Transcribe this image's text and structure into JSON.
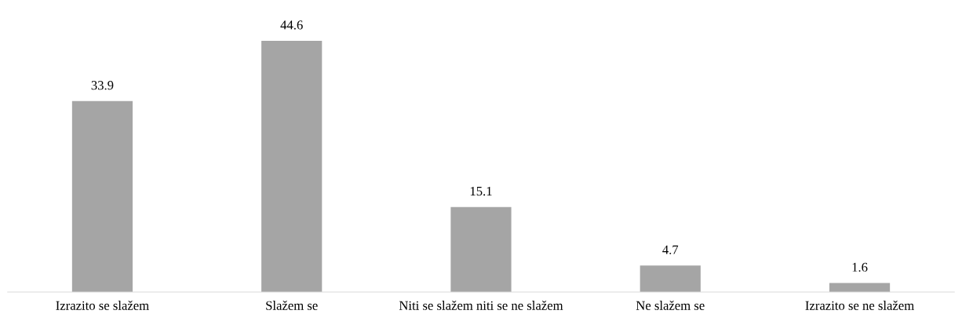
{
  "chart_data": {
    "type": "bar",
    "categories": [
      "Izrazito se slažem",
      "Slažem se",
      "Niti se slažem niti se ne slažem",
      "Ne slažem se",
      "Izrazito se ne slažem"
    ],
    "values": [
      33.9,
      44.6,
      15.1,
      4.7,
      1.6
    ],
    "color": "#a5a5a5",
    "data_labels": true,
    "grid": false,
    "legend": false,
    "tick_labels": "x"
  }
}
